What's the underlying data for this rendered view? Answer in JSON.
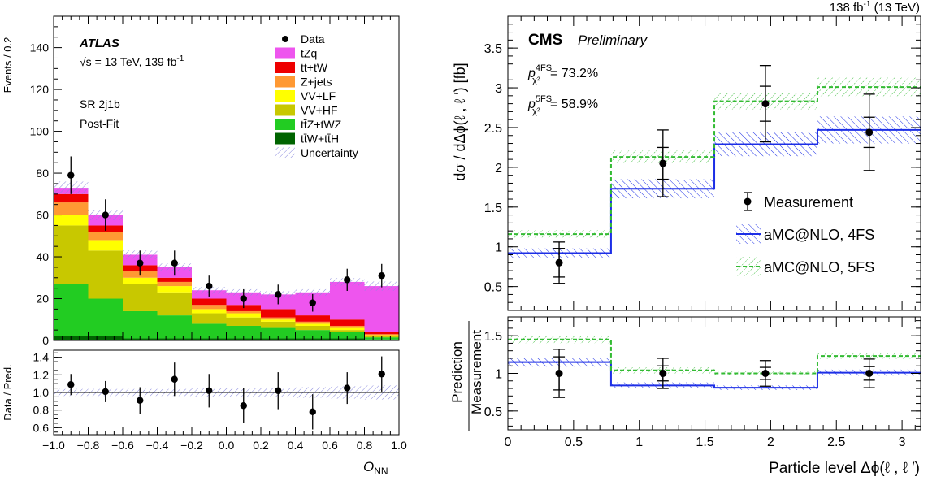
{
  "chart_data": [
    {
      "type": "bar",
      "stacked": true,
      "panel": "left-top",
      "xlabel_main": "O",
      "xlabel_sub": "NN",
      "ylabel": "Events / 0.2",
      "xlim": [
        -1.0,
        1.0
      ],
      "ylim": [
        0,
        155
      ],
      "x_ticks": [
        "−1.0",
        "−0.8",
        "−0.6",
        "−0.4",
        "−0.2",
        "0.0",
        "0.2",
        "0.4",
        "0.6",
        "0.8",
        "1.0"
      ],
      "y_ticks": [
        "0",
        "20",
        "40",
        "60",
        "80",
        "100",
        "120",
        "140"
      ],
      "bin_edges": [
        -1.0,
        -0.8,
        -0.6,
        -0.4,
        -0.2,
        0.0,
        0.2,
        0.4,
        0.6,
        0.8,
        1.0
      ],
      "annotations": {
        "experiment": "ATLAS",
        "energy": "√s = 13 TeV, 139 fb",
        "energy_sup": "-1",
        "region": "SR 2j1b",
        "fit": "Post-Fit"
      },
      "series": [
        {
          "name": "ttW+ttH",
          "color": "#006400",
          "values": [
            2,
            2,
            1,
            1,
            1,
            1,
            1,
            1,
            1,
            0.5
          ]
        },
        {
          "name": "ttZ+tWZ",
          "color": "#22cc22",
          "values": [
            25,
            18,
            13,
            11,
            7,
            6,
            5,
            4,
            3,
            1
          ]
        },
        {
          "name": "VV+HF",
          "color": "#c8c800",
          "values": [
            28,
            23,
            13,
            11,
            5,
            4,
            3,
            2,
            1,
            0.5
          ]
        },
        {
          "name": "VV+LF",
          "color": "#ffff00",
          "values": [
            5,
            5,
            3,
            3,
            2,
            2,
            1,
            1,
            1,
            0.5
          ]
        },
        {
          "name": "Z+jets",
          "color": "#ff9933",
          "values": [
            6,
            4,
            3,
            2,
            2,
            1,
            1,
            1,
            1,
            0.5
          ]
        },
        {
          "name": "tt+tW",
          "color": "#ee0000",
          "values": [
            4,
            3,
            3,
            2,
            3,
            3,
            4,
            3,
            3,
            1
          ]
        },
        {
          "name": "tZq",
          "color": "#ee55ee",
          "values": [
            3,
            5,
            5,
            5,
            4,
            6,
            7,
            11,
            18,
            22
          ]
        }
      ],
      "uncertainty_halfwidth": [
        3,
        2.5,
        2,
        1.8,
        1.6,
        1.5,
        1.5,
        1.5,
        1.8,
        2.2
      ],
      "data": {
        "name": "Data",
        "x": [
          -0.9,
          -0.7,
          -0.5,
          -0.3,
          -0.1,
          0.1,
          0.3,
          0.5,
          0.7,
          0.9
        ],
        "y": [
          79,
          60,
          37,
          37,
          26,
          20,
          22,
          18,
          29,
          31
        ],
        "err": [
          9,
          7.5,
          6,
          6,
          5,
          4.5,
          4.7,
          4.2,
          5.3,
          5.6
        ]
      },
      "legend": [
        {
          "label": "Data",
          "kind": "marker"
        },
        {
          "label": "tZq",
          "kind": "box",
          "color": "#ee55ee"
        },
        {
          "label": "tt̄+tW",
          "kind": "box",
          "color": "#ee0000"
        },
        {
          "label": "Z+jets",
          "kind": "box",
          "color": "#ff9933"
        },
        {
          "label": "VV+LF",
          "kind": "box",
          "color": "#ffff00"
        },
        {
          "label": "VV+HF",
          "kind": "box",
          "color": "#c8c800"
        },
        {
          "label": "tt̄Z+tWZ",
          "kind": "box",
          "color": "#22cc22"
        },
        {
          "label": "tt̄W+tt̄H",
          "kind": "box",
          "color": "#006400"
        },
        {
          "label": "Uncertainty",
          "kind": "hatch"
        }
      ]
    },
    {
      "type": "scatter",
      "panel": "left-bottom",
      "ylabel": "Data / Pred.",
      "xlim": [
        -1.0,
        1.0
      ],
      "ylim": [
        0.52,
        1.48
      ],
      "y_ticks": [
        "0.6",
        "0.8",
        "1.0",
        "1.2",
        "1.4"
      ],
      "ratio_x": [
        -0.9,
        -0.7,
        -0.5,
        -0.3,
        -0.1,
        0.1,
        0.3,
        0.5,
        0.7,
        0.9
      ],
      "ratio_y": [
        1.09,
        1.01,
        0.91,
        1.15,
        1.02,
        0.85,
        1.02,
        0.78,
        1.05,
        1.21
      ],
      "ratio_err": [
        0.12,
        0.12,
        0.15,
        0.19,
        0.19,
        0.2,
        0.21,
        0.2,
        0.18,
        0.2
      ],
      "band_halfwidth": [
        0.04,
        0.04,
        0.04,
        0.04,
        0.05,
        0.05,
        0.05,
        0.06,
        0.07,
        0.08
      ]
    },
    {
      "type": "line",
      "panel": "right-top",
      "lumi": "138 fb",
      "lumi_sup": "-1",
      "lumi_tail": " (13 TeV)",
      "experiment": "CMS",
      "status": "Preliminary",
      "ylabel": "dσ / dΔϕ(ℓ , ℓ ′)   [fb]",
      "xlim": [
        0,
        3.1416
      ],
      "ylim": [
        0.2,
        3.9
      ],
      "y_ticks": [
        "0.5",
        "1",
        "1.5",
        "2",
        "2.5",
        "3",
        "3.5"
      ],
      "pvalues": [
        {
          "base": "p",
          "sup": "4FS",
          "sub": "χ²",
          "value": " = 73.2%"
        },
        {
          "base": "p",
          "sup": "5FS",
          "sub": "χ²",
          "value": " = 58.9%"
        }
      ],
      "bin_edges": [
        0,
        0.785,
        1.571,
        2.356,
        3.1416
      ],
      "measurement": {
        "name": "Measurement",
        "x": [
          0.39,
          1.18,
          1.96,
          2.75
        ],
        "y": [
          0.8,
          2.05,
          2.8,
          2.44
        ],
        "err_total": [
          0.26,
          0.42,
          0.48,
          0.48
        ],
        "err_inner": [
          0.18,
          0.2,
          0.22,
          0.19
        ]
      },
      "series": [
        {
          "name": "aMC@NLO, 4FS",
          "color": "#1c2ee6",
          "values": [
            0.92,
            1.73,
            2.29,
            2.47
          ],
          "band": [
            0.06,
            0.12,
            0.15,
            0.17
          ]
        },
        {
          "name": "aMC@NLO, 5FS",
          "color": "#33bb33",
          "values": [
            1.16,
            2.13,
            2.83,
            3.01
          ],
          "band": [
            0.05,
            0.08,
            0.1,
            0.12
          ]
        }
      ],
      "legend": [
        {
          "label": "Measurement",
          "kind": "marker"
        },
        {
          "label": "aMC@NLO, 4FS",
          "kind": "hatch-blue"
        },
        {
          "label": "aMC@NLO, 5FS",
          "kind": "hatch-green"
        }
      ]
    },
    {
      "type": "line",
      "panel": "right-bottom",
      "ylabel_top": "Prediction",
      "ylabel_bottom": "Measurement",
      "xlabel": "Particle level Δϕ(ℓ , ℓ ′)",
      "xlim": [
        0,
        3.1416
      ],
      "ylim": [
        0.25,
        1.75
      ],
      "x_ticks": [
        "0",
        "0.5",
        "1",
        "1.5",
        "2",
        "2.5",
        "3"
      ],
      "y_ticks": [
        "0.5",
        "1",
        "1.5"
      ],
      "measurement_ratio": {
        "x": [
          0.39,
          1.18,
          1.96,
          2.75
        ],
        "y": [
          1.0,
          1.0,
          1.0,
          1.0
        ],
        "err_total": [
          0.32,
          0.2,
          0.17,
          0.19
        ],
        "err_inner": [
          0.22,
          0.1,
          0.08,
          0.09
        ]
      },
      "series": [
        {
          "name": "aMC@NLO, 4FS",
          "color": "#1c2ee6",
          "values": [
            1.15,
            0.84,
            0.81,
            1.01
          ],
          "band": [
            0.06,
            0.04,
            0.03,
            0.04
          ]
        },
        {
          "name": "aMC@NLO, 5FS",
          "color": "#33bb33",
          "values": [
            1.45,
            1.04,
            1.0,
            1.23
          ],
          "band": [
            0.05,
            0.04,
            0.03,
            0.04
          ]
        }
      ]
    }
  ]
}
